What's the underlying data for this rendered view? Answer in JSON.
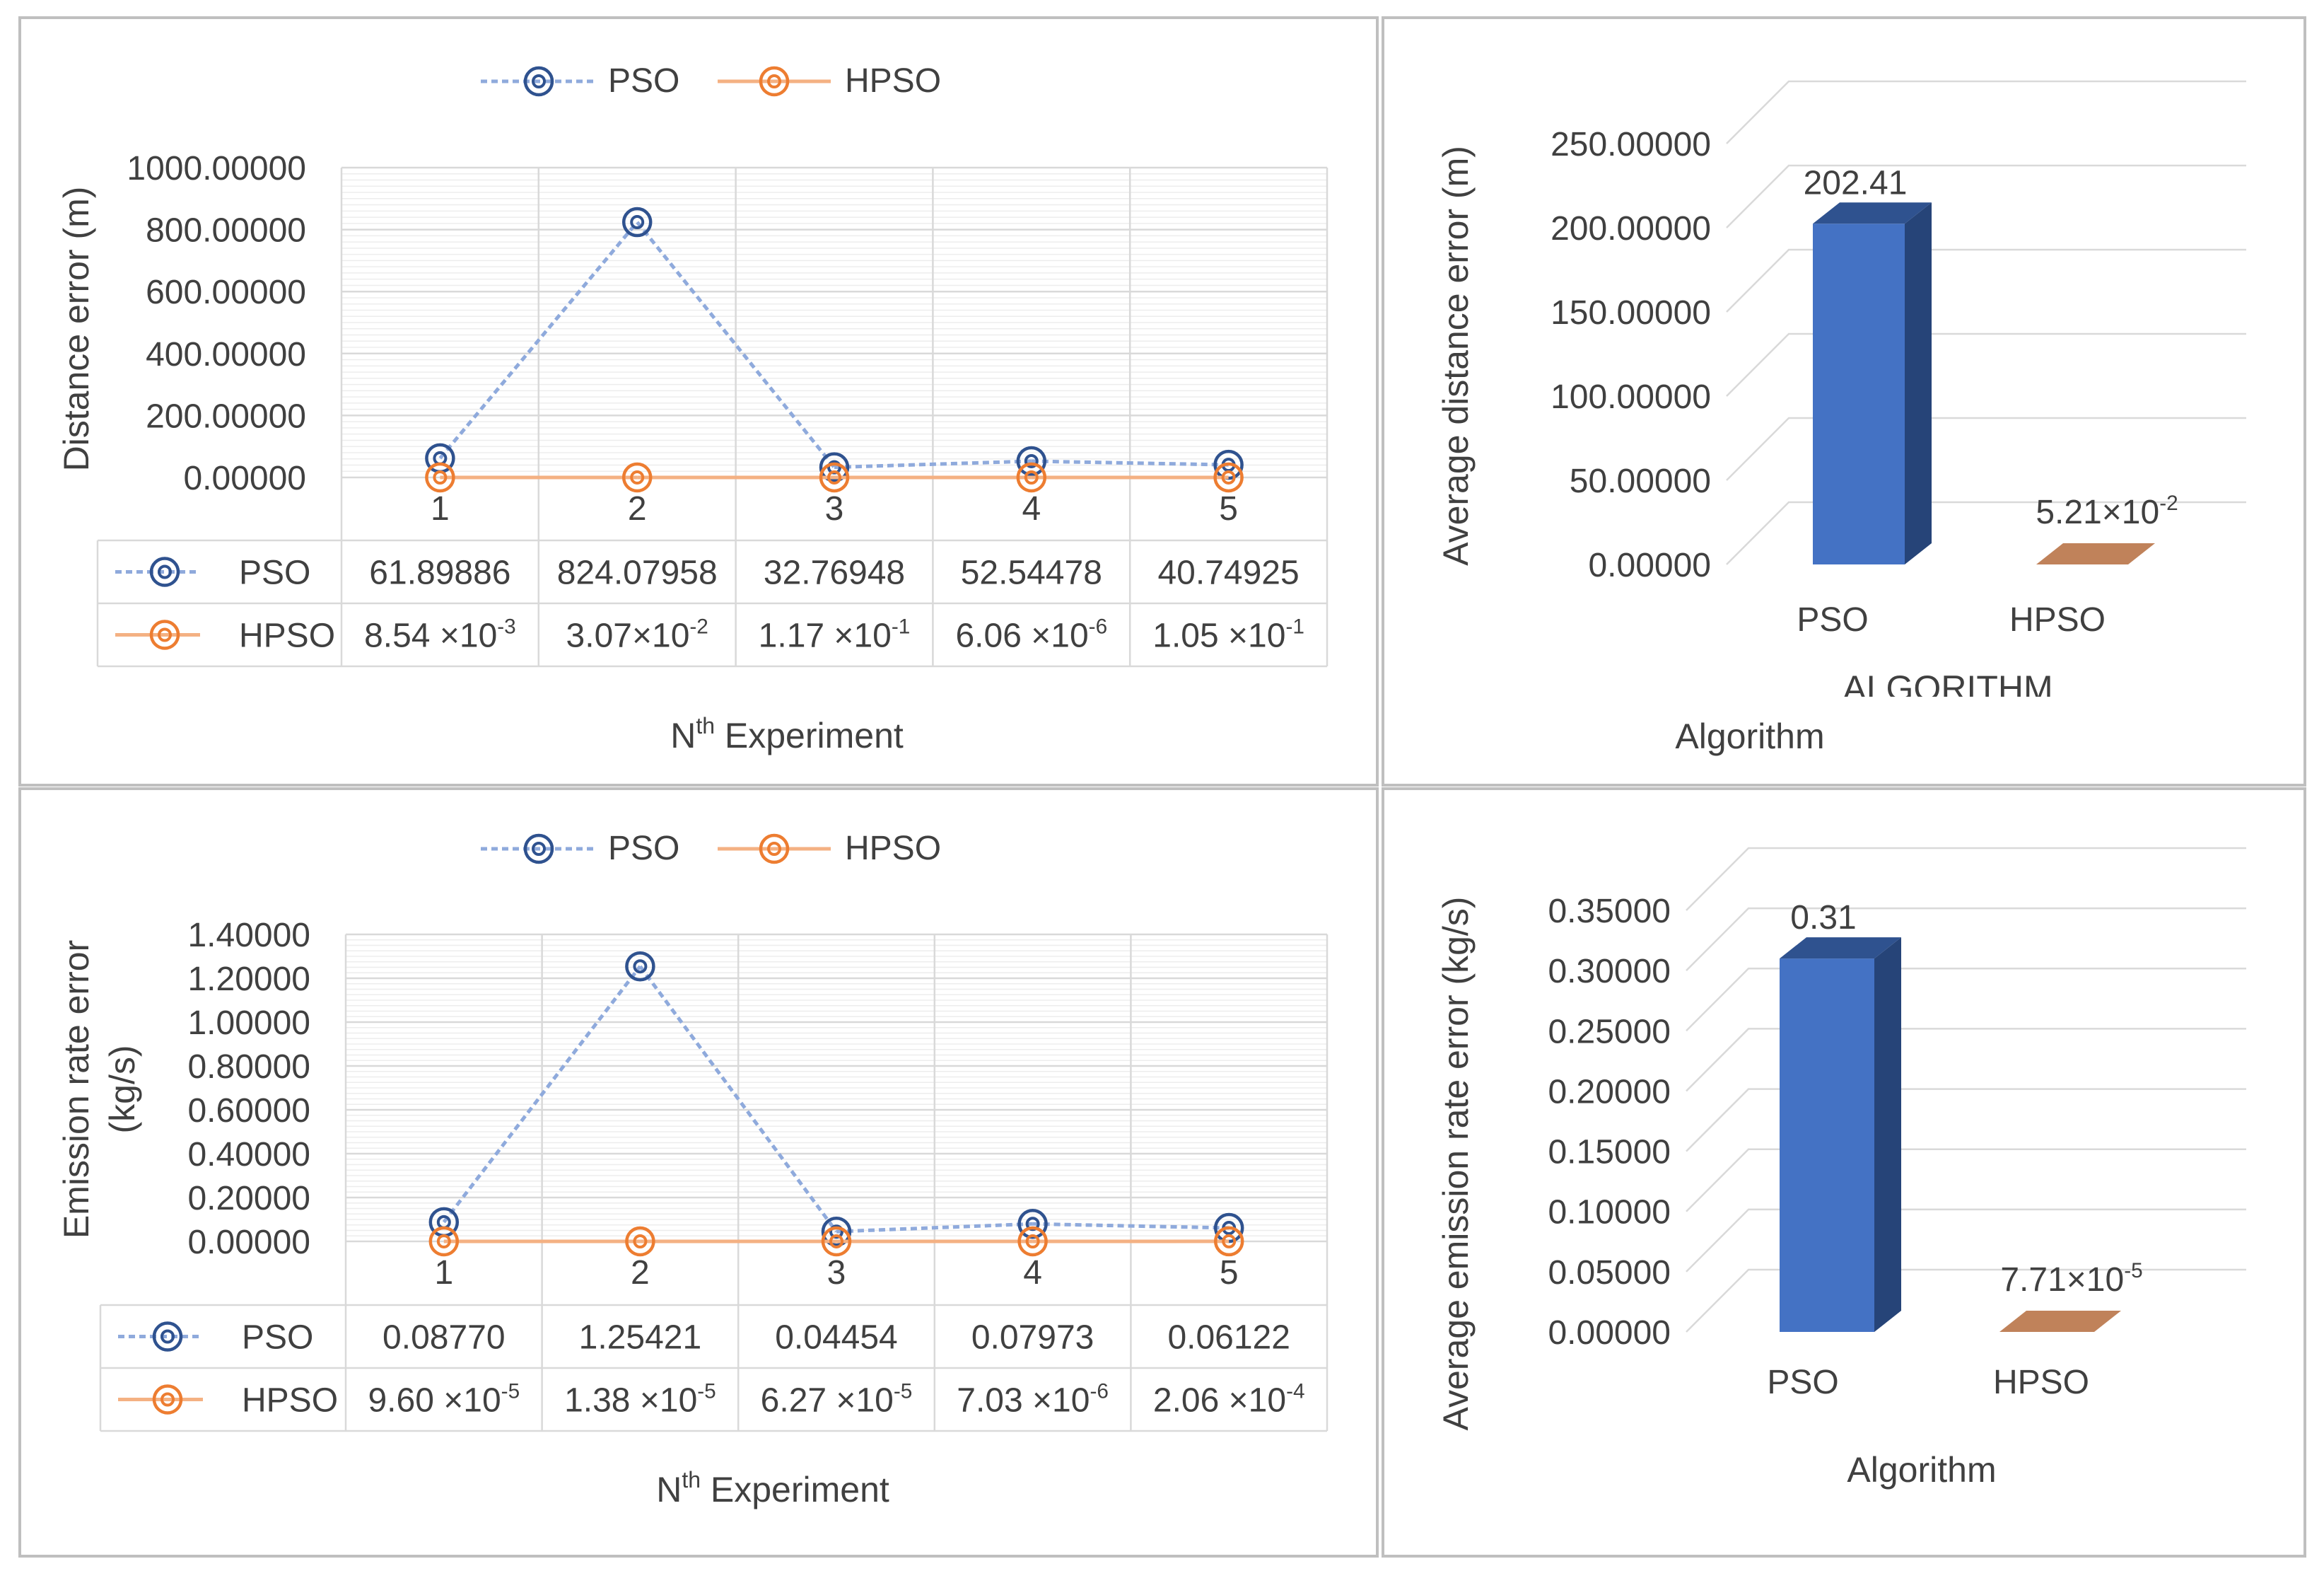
{
  "colors": {
    "pso": "#4472C4",
    "pso_dark": "#2F528F",
    "pso_side": "#264478",
    "hpso": "#ED7D31",
    "hpso_bar": "#C0825A",
    "grid": "#D9D9D9",
    "text": "#404040",
    "border": "#BFBFBF"
  },
  "chart_data": [
    {
      "id": "distance-line",
      "type": "line",
      "legend": [
        "PSO",
        "HPSO"
      ],
      "categories": [
        "1",
        "2",
        "3",
        "4",
        "5"
      ],
      "ylabel": "Distance error (m)",
      "xlabel_main": "N",
      "xlabel_sup": "th",
      "xlabel_rest": " Experiment",
      "yticks": [
        "0.00000",
        "200.00000",
        "400.00000",
        "600.00000",
        "800.00000",
        "1000.00000"
      ],
      "ylim": [
        0,
        1000
      ],
      "series": [
        {
          "name": "PSO",
          "values": [
            61.89886,
            824.07958,
            32.76948,
            52.54478,
            40.74925
          ],
          "labels": [
            [
              "61.89886",
              ""
            ],
            [
              "824.07958",
              ""
            ],
            [
              "32.76948",
              ""
            ],
            [
              "52.54478",
              ""
            ],
            [
              "40.74925",
              ""
            ]
          ]
        },
        {
          "name": "HPSO",
          "values": [
            0.00854,
            0.0307,
            0.117,
            6.06e-06,
            0.105
          ],
          "labels": [
            [
              "8.54 ×10",
              "-3"
            ],
            [
              "3.07×10",
              "-2"
            ],
            [
              "1.17 ×10",
              "-1"
            ],
            [
              "6.06 ×10",
              "-6"
            ],
            [
              "1.05 ×10",
              "-1"
            ]
          ]
        }
      ]
    },
    {
      "id": "distance-bar",
      "type": "bar",
      "categories": [
        "PSO",
        "HPSO"
      ],
      "values": [
        202.41,
        0.0521
      ],
      "labels": [
        [
          "202.41",
          ""
        ],
        [
          "5.21×10",
          "-2"
        ]
      ],
      "ylabel": "Average distance error (m)",
      "xlabel": "Algorithm",
      "xlabel_overlap": "ALGORITHM",
      "yticks": [
        "0.00000",
        "50.00000",
        "100.00000",
        "150.00000",
        "200.00000",
        "250.00000"
      ],
      "ylim": [
        0,
        250
      ]
    },
    {
      "id": "emission-line",
      "type": "line",
      "legend": [
        "PSO",
        "HPSO"
      ],
      "categories": [
        "1",
        "2",
        "3",
        "4",
        "5"
      ],
      "ylabel_line1": "Emission rate error",
      "ylabel_line2": "(kg/s)",
      "xlabel_main": "N",
      "xlabel_sup": "th",
      "xlabel_rest": " Experiment",
      "yticks": [
        "0.00000",
        "0.20000",
        "0.40000",
        "0.60000",
        "0.80000",
        "1.00000",
        "1.20000",
        "1.40000"
      ],
      "ylim": [
        0,
        1.4
      ],
      "series": [
        {
          "name": "PSO",
          "values": [
            0.0877,
            1.25421,
            0.04454,
            0.07973,
            0.06122
          ],
          "labels": [
            [
              "0.08770",
              ""
            ],
            [
              "1.25421",
              ""
            ],
            [
              "0.04454",
              ""
            ],
            [
              "0.07973",
              ""
            ],
            [
              "0.06122",
              ""
            ]
          ]
        },
        {
          "name": "HPSO",
          "values": [
            9.6e-05,
            1.38e-05,
            6.27e-05,
            7.03e-06,
            0.000206
          ],
          "labels": [
            [
              "9.60 ×10",
              "-5"
            ],
            [
              "1.38 ×10",
              "-5"
            ],
            [
              "6.27 ×10",
              "-5"
            ],
            [
              "7.03 ×10",
              "-6"
            ],
            [
              "2.06 ×10",
              "-4"
            ]
          ]
        }
      ]
    },
    {
      "id": "emission-bar",
      "type": "bar",
      "categories": [
        "PSO",
        "HPSO"
      ],
      "values": [
        0.31,
        7.71e-05
      ],
      "labels": [
        [
          "0.31",
          ""
        ],
        [
          "7.71×10",
          "-5"
        ]
      ],
      "ylabel": "Average emission rate error (kg/s)",
      "xlabel": "Algorithm",
      "yticks": [
        "0.00000",
        "0.05000",
        "0.10000",
        "0.15000",
        "0.20000",
        "0.25000",
        "0.30000",
        "0.35000"
      ],
      "ylim": [
        0,
        0.35
      ]
    }
  ]
}
